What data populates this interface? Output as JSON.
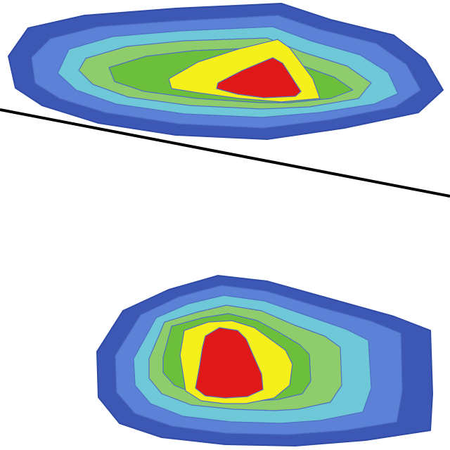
{
  "chart_data": {
    "type": "heatmap",
    "style": "filled-contour",
    "title": "",
    "xlabel": "",
    "ylabel": "",
    "colorscale": [
      {
        "level": 1,
        "color": "#3c58b4"
      },
      {
        "level": 2,
        "color": "#5b82d6"
      },
      {
        "level": 3,
        "color": "#6fc8d8"
      },
      {
        "level": 4,
        "color": "#8fcc6b"
      },
      {
        "level": 5,
        "color": "#6bbf3b"
      },
      {
        "level": 6,
        "color": "#f5ef1a"
      },
      {
        "level": 7,
        "color": "#e01818"
      }
    ],
    "regions": [
      {
        "name": "upper-region",
        "peak_level": 7
      },
      {
        "name": "lower-region",
        "peak_level": 7
      }
    ],
    "reference_line": {
      "color": "#000000"
    },
    "grid": false,
    "legend": "none"
  }
}
